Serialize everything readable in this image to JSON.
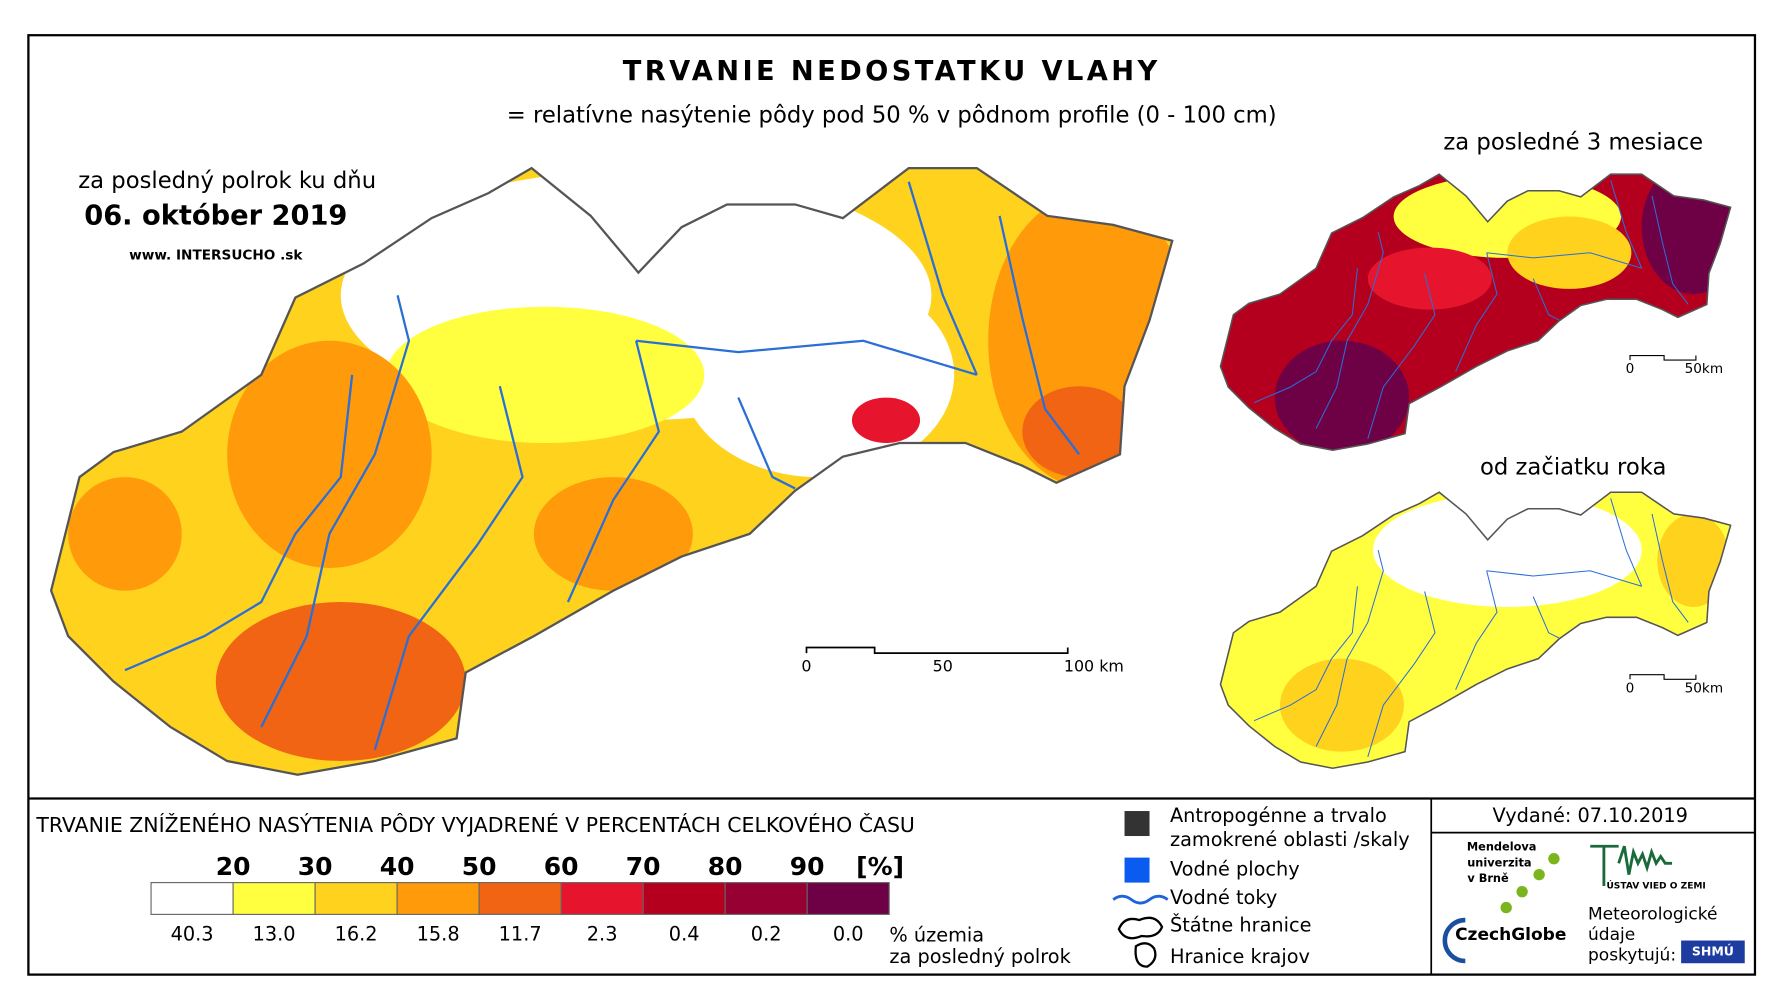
{
  "header": {
    "title": "TRVANIE NEDOSTATKU VLAHY",
    "subtitle": "= relatívne nasýtenie pôdy pod 50 % v pôdnom profile (0 - 100 cm)"
  },
  "main_map": {
    "period": "za posledný polrok ku dňu",
    "date": "06. október 2019",
    "website": "www. INTERSUCHO .sk",
    "scale_labels": [
      "0",
      "50",
      "100 km"
    ]
  },
  "insets": [
    {
      "title": "za posledné 3 mesiace",
      "scale_labels": [
        "0",
        "50km"
      ]
    },
    {
      "title": "od začiatku roka",
      "scale_labels": [
        "0",
        "50km"
      ]
    }
  ],
  "legend": {
    "title": "TRVANIE ZNÍŽENÉHO NASÝTENIA PÔDY VYJADRENÉ V PERCENTÁCH CELKOVÉHO ČASU",
    "breaks": [
      20,
      30,
      40,
      50,
      60,
      70,
      80,
      90
    ],
    "unit": "[%]",
    "classes": [
      {
        "color": "#ffffff",
        "share": "40.3"
      },
      {
        "color": "#ffff40",
        "share": "13.0"
      },
      {
        "color": "#ffd21e",
        "share": "16.2"
      },
      {
        "color": "#ff9b0a",
        "share": "15.8"
      },
      {
        "color": "#f06414",
        "share": "11.7"
      },
      {
        "color": "#e6142d",
        "share": "2.3"
      },
      {
        "color": "#b4001e",
        "share": "0.4"
      },
      {
        "color": "#960032",
        "share": "0.2"
      },
      {
        "color": "#6e0046",
        "share": "0.0"
      }
    ],
    "share_caption": [
      "% územia",
      "za posledný polrok"
    ]
  },
  "symbols": [
    "Antropogénne a trvalo",
    "zamokrené oblasti /skaly",
    "Vodné plochy",
    "Vodné toky",
    "Štátne hranice",
    "Hranice krajov"
  ],
  "issued": "Vydané: 07.10.2019",
  "logos": {
    "mendel": [
      "Mendelova",
      "univerzita",
      "v Brně"
    ],
    "czechglobe": "CzechGlobe",
    "esi": "ÚSTAV VIED O ZEMI",
    "provider": [
      "Meteorologické",
      "údaje",
      "poskytujú:"
    ],
    "shmu": "SHMÚ"
  }
}
